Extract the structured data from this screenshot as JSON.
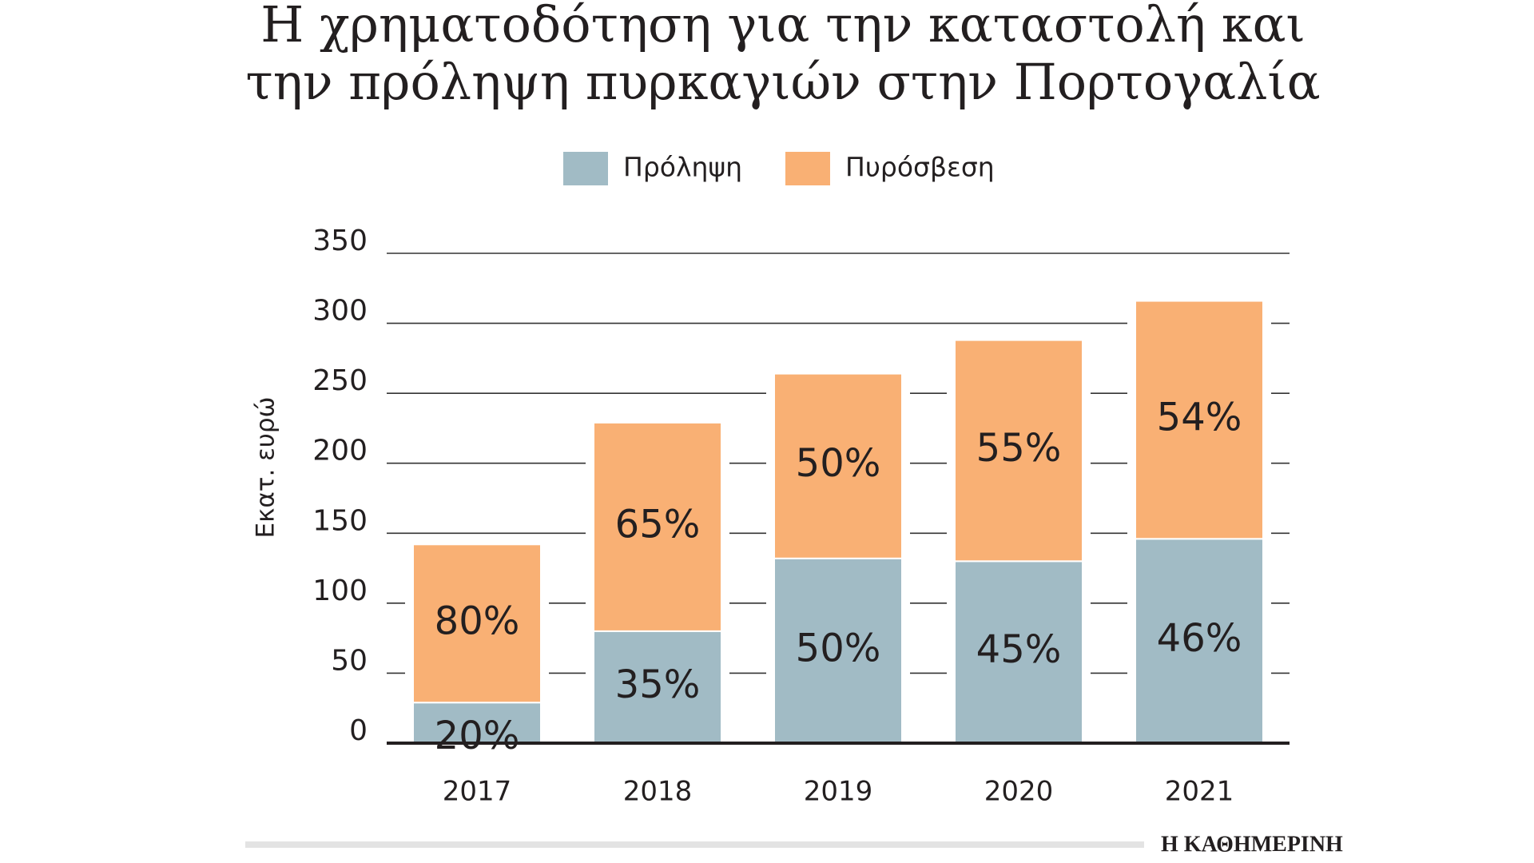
{
  "chart_data": {
    "type": "stacked_bar",
    "title": [
      "Η χρηματοδότηση για την καταστολή και",
      "την πρόληψη πυρκαγιών στην Πορτογαλία"
    ],
    "y_label": "Εκατ. ευρώ",
    "categories": [
      "2017",
      "2018",
      "2019",
      "2020",
      "2021"
    ],
    "series": [
      {
        "name": "Πρόληψη",
        "color": "#a1bbc5",
        "values": [
          29,
          80,
          132,
          130,
          146
        ],
        "labels": [
          "20%",
          "35%",
          "50%",
          "45%",
          "46%"
        ]
      },
      {
        "name": "Πυρόσβεση",
        "color": "#f9b074",
        "values": [
          113,
          149,
          132,
          158,
          170
        ],
        "labels": [
          "80%",
          "65%",
          "50%",
          "55%",
          "54%"
        ]
      }
    ],
    "ylim": [
      0,
      350
    ],
    "yticks": [
      0,
      50,
      100,
      150,
      200,
      250,
      300,
      350
    ],
    "grid": true,
    "source": "Η ΚΑΘΗΜΕΡΙΝΗ"
  }
}
